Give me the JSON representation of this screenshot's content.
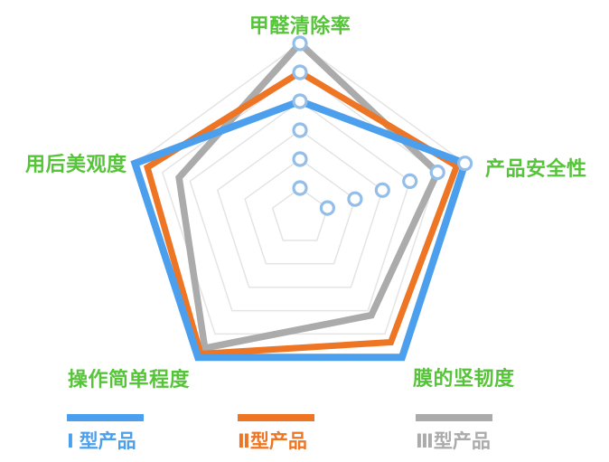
{
  "chart_data": {
    "type": "radar",
    "categories": [
      "甲醛清除率",
      "产品安全性",
      "膜的坚韧度",
      "操作简单程度",
      "用后美观度"
    ],
    "rings": 6,
    "max": 6,
    "series": [
      {
        "name": "Ⅰ 型产品",
        "color": "#4C9FED",
        "stroke_width": 8,
        "values": [
          4.0,
          6.0,
          6.0,
          6.0,
          6.0
        ]
      },
      {
        "name": "Ⅱ型产品",
        "color": "#ED7524",
        "stroke_width": 7,
        "values": [
          5.0,
          5.7,
          5.35,
          5.85,
          5.55
        ]
      },
      {
        "name": "Ⅲ型产品",
        "color": "#ABABAB",
        "stroke_width": 7.5,
        "values": [
          6.0,
          5.0,
          4.2,
          5.6,
          4.4
        ]
      }
    ],
    "axis_marker_axes": [
      0,
      1
    ],
    "marker_color": "#93BEE9",
    "grid_color": "#E4E4E4",
    "label_color": "#56C438",
    "legend_position": "bottom",
    "grid": "pentagon-rings-on"
  }
}
